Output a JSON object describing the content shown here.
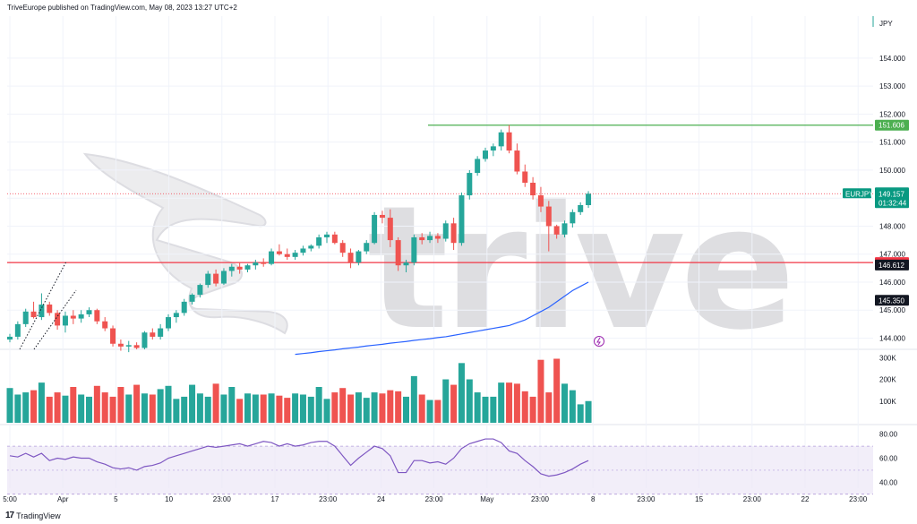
{
  "header": {
    "published": "TriveEurope published on TradingView.com, May 08, 2023 13:27 UTC+2"
  },
  "footer": {
    "logo_mark": "17",
    "logo_text": "TradingView"
  },
  "watermark": {
    "text": "trive"
  },
  "colors": {
    "up": "#26a69a",
    "down": "#ef5350",
    "ma": "#2962ff",
    "rsi": "#7e57c2",
    "resistance": "#4caf50",
    "support": "#f23645",
    "price_badge": "#089981"
  },
  "chart_data": [
    {
      "type": "candlestick",
      "title": "",
      "currency": "JPY",
      "price_axis_ticks": [
        "154.000",
        "153.000",
        "152.000",
        "151.000",
        "150.000",
        "149.000",
        "148.000",
        "147.000",
        "146.000",
        "145.000",
        "144.000"
      ],
      "ylim": [
        143.6,
        155.5
      ],
      "time_axis_labels": [
        "5:00",
        "Apr",
        "5",
        "10",
        "23:00",
        "17",
        "23:00",
        "24",
        "23:00",
        "May",
        "23:00",
        "8",
        "23:00",
        "15",
        "23:00",
        "22",
        "23:00"
      ],
      "candles": [
        [
          143.95,
          144.15,
          143.85,
          144.05
        ],
        [
          144.05,
          144.6,
          143.95,
          144.5
        ],
        [
          144.5,
          145.05,
          144.4,
          144.95
        ],
        [
          144.95,
          145.3,
          144.7,
          144.75
        ],
        [
          144.75,
          145.6,
          144.65,
          145.2
        ],
        [
          145.2,
          145.3,
          144.8,
          144.9
        ],
        [
          144.9,
          145.0,
          144.3,
          144.45
        ],
        [
          144.45,
          144.95,
          144.2,
          144.8
        ],
        [
          144.8,
          145.0,
          144.5,
          144.7
        ],
        [
          144.7,
          145.0,
          144.55,
          144.85
        ],
        [
          144.85,
          145.1,
          144.75,
          145.0
        ],
        [
          145.0,
          145.05,
          144.5,
          144.6
        ],
        [
          144.6,
          144.75,
          144.25,
          144.35
        ],
        [
          144.35,
          144.45,
          143.7,
          143.8
        ],
        [
          143.8,
          143.95,
          143.55,
          143.7
        ],
        [
          143.7,
          143.9,
          143.5,
          143.75
        ],
        [
          143.75,
          143.85,
          143.6,
          143.65
        ],
        [
          143.65,
          144.25,
          143.6,
          144.2
        ],
        [
          144.2,
          144.35,
          143.95,
          144.05
        ],
        [
          144.05,
          144.5,
          143.95,
          144.35
        ],
        [
          144.35,
          144.85,
          144.25,
          144.75
        ],
        [
          144.75,
          145.0,
          144.55,
          144.9
        ],
        [
          144.9,
          145.4,
          144.8,
          145.3
        ],
        [
          145.3,
          145.6,
          145.2,
          145.55
        ],
        [
          145.55,
          145.95,
          145.45,
          145.9
        ],
        [
          145.9,
          146.4,
          145.8,
          146.3
        ],
        [
          146.3,
          146.45,
          145.85,
          145.95
        ],
        [
          145.95,
          146.5,
          145.9,
          146.4
        ],
        [
          146.4,
          146.65,
          146.2,
          146.55
        ],
        [
          146.55,
          146.7,
          146.3,
          146.45
        ],
        [
          146.45,
          146.65,
          146.35,
          146.6
        ],
        [
          146.6,
          146.8,
          146.45,
          146.7
        ],
        [
          146.7,
          146.85,
          146.55,
          146.65
        ],
        [
          146.65,
          147.2,
          146.6,
          147.1
        ],
        [
          147.1,
          147.35,
          146.95,
          147.0
        ],
        [
          147.0,
          147.2,
          146.8,
          146.9
        ],
        [
          146.9,
          147.15,
          146.8,
          147.05
        ],
        [
          147.05,
          147.3,
          146.95,
          147.2
        ],
        [
          147.2,
          147.35,
          147.1,
          147.3
        ],
        [
          147.3,
          147.7,
          147.2,
          147.6
        ],
        [
          147.6,
          147.8,
          147.4,
          147.7
        ],
        [
          147.7,
          147.8,
          147.35,
          147.4
        ],
        [
          147.4,
          147.5,
          146.9,
          147.05
        ],
        [
          147.05,
          147.2,
          146.5,
          146.7
        ],
        [
          146.7,
          147.15,
          146.6,
          147.1
        ],
        [
          147.1,
          147.5,
          147.0,
          147.4
        ],
        [
          147.4,
          148.5,
          147.35,
          148.4
        ],
        [
          148.4,
          148.55,
          148.1,
          148.3
        ],
        [
          148.3,
          148.6,
          147.25,
          147.5
        ],
        [
          147.5,
          147.6,
          146.4,
          146.6
        ],
        [
          146.6,
          146.8,
          146.35,
          146.7
        ],
        [
          146.7,
          147.7,
          146.6,
          147.6
        ],
        [
          147.6,
          147.75,
          147.35,
          147.5
        ],
        [
          147.5,
          147.8,
          147.4,
          147.65
        ],
        [
          147.65,
          147.75,
          147.4,
          147.55
        ],
        [
          147.55,
          148.2,
          147.45,
          148.1
        ],
        [
          148.1,
          148.3,
          147.15,
          147.4
        ],
        [
          147.4,
          149.2,
          147.3,
          149.1
        ],
        [
          149.1,
          150.0,
          148.95,
          149.9
        ],
        [
          149.9,
          150.5,
          149.8,
          150.4
        ],
        [
          150.4,
          150.8,
          150.3,
          150.7
        ],
        [
          150.7,
          150.95,
          150.5,
          150.85
        ],
        [
          150.85,
          151.45,
          150.7,
          151.35
        ],
        [
          151.35,
          151.61,
          150.6,
          150.7
        ],
        [
          150.7,
          150.95,
          149.85,
          149.95
        ],
        [
          149.95,
          150.2,
          149.4,
          149.55
        ],
        [
          149.55,
          149.75,
          148.95,
          149.1
        ],
        [
          149.1,
          149.4,
          148.5,
          148.7
        ],
        [
          148.7,
          148.9,
          147.1,
          148.0
        ],
        [
          148.0,
          148.05,
          147.55,
          147.7
        ],
        [
          147.7,
          148.2,
          147.6,
          148.1
        ],
        [
          148.1,
          148.6,
          147.95,
          148.5
        ],
        [
          148.5,
          148.85,
          148.4,
          148.75
        ],
        [
          148.75,
          149.25,
          148.65,
          149.157
        ]
      ],
      "moving_average": [
        143.42,
        143.45,
        143.48,
        143.52,
        143.55,
        143.58,
        143.62,
        143.65,
        143.68,
        143.72,
        143.75,
        143.78,
        143.82,
        143.85,
        143.88,
        143.92,
        143.95,
        143.98,
        144.02,
        144.05,
        144.1,
        144.15,
        144.2,
        144.25,
        144.3,
        144.35,
        144.4,
        144.45,
        144.55,
        144.65,
        144.8,
        144.95,
        145.1,
        145.3,
        145.5,
        145.7,
        145.85,
        146.0
      ],
      "horizontal_levels": [
        {
          "label": "151.606",
          "price": 151.606,
          "kind": "resistance"
        },
        {
          "label": "146.699",
          "price": 146.699,
          "kind": "support"
        }
      ],
      "axis_badges": [
        {
          "text": "EURJPY",
          "price": 149.157,
          "kind": "symbol"
        },
        {
          "text": "149.157",
          "price": 149.157,
          "kind": "price",
          "countdown": "01:32:44"
        },
        {
          "text": "146.612",
          "price": 146.612,
          "kind": "dark"
        },
        {
          "text": "145.350",
          "price": 145.35,
          "kind": "dark"
        }
      ]
    },
    {
      "type": "bar",
      "title": "",
      "ylim": [
        0,
        330000
      ],
      "y_ticks": [
        "300K",
        "200K",
        "100K"
      ],
      "volume": [
        160000,
        130000,
        140000,
        150000,
        185000,
        120000,
        140000,
        125000,
        165000,
        130000,
        120000,
        170000,
        140000,
        120000,
        165000,
        130000,
        175000,
        135000,
        130000,
        155000,
        170000,
        110000,
        120000,
        175000,
        135000,
        120000,
        180000,
        130000,
        165000,
        110000,
        135000,
        130000,
        130000,
        135000,
        125000,
        115000,
        135000,
        130000,
        120000,
        165000,
        110000,
        140000,
        160000,
        130000,
        140000,
        115000,
        140000,
        135000,
        150000,
        145000,
        120000,
        215000,
        130000,
        105000,
        105000,
        200000,
        175000,
        275000,
        200000,
        140000,
        120000,
        120000,
        185000,
        185000,
        180000,
        145000,
        120000,
        290000,
        140000,
        295000,
        180000,
        150000,
        85000,
        100000
      ]
    },
    {
      "type": "line",
      "title": "",
      "ylim": [
        35,
        85
      ],
      "y_ticks": [
        "80.00",
        "60.00",
        "40.00"
      ],
      "band": [
        30,
        70
      ],
      "values": [
        62,
        61,
        64,
        61,
        64,
        58,
        60,
        59,
        61,
        60,
        60,
        57,
        55,
        52,
        51,
        52,
        50,
        53,
        54,
        56,
        60,
        62,
        64,
        66,
        68,
        70,
        69,
        70,
        71,
        72,
        70,
        72,
        74,
        73,
        70,
        72,
        70,
        71,
        73,
        74,
        74,
        70,
        62,
        54,
        60,
        65,
        70,
        68,
        62,
        48,
        48,
        58,
        58,
        56,
        57,
        55,
        60,
        68,
        72,
        74,
        76,
        76,
        73,
        66,
        64,
        58,
        53,
        47,
        45,
        46,
        48,
        51,
        55,
        58
      ]
    }
  ]
}
